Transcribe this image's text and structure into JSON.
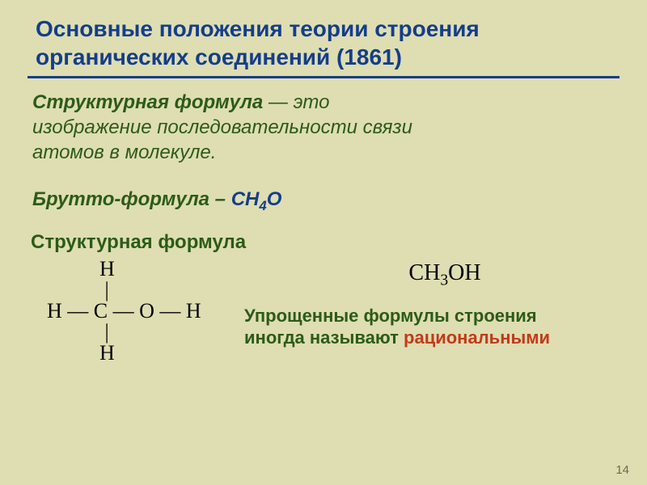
{
  "colors": {
    "background": "#dedeb2",
    "title": "#153d8a",
    "underline": "#153d8a",
    "body": "#2d5a18",
    "formula": "#153d8a",
    "structure": "#000000",
    "rational_formula": "#000000",
    "caption_main": "#2d5a18",
    "caption_em": "#c23a1a",
    "pagenum": "#6b6b55"
  },
  "fonts": {
    "title_size": 28,
    "body_size": 24,
    "brutto_size": 24,
    "struct_label_size": 24,
    "rational_size": 28,
    "caption_size": 22
  },
  "title": {
    "line1": "Основные положения теории строения",
    "line2": "органических соединений (1861)"
  },
  "definition": {
    "term": "Структурная формула",
    "dash": " — это",
    "line2": "изображение последовательности связи",
    "line3": "атомов в молекуле."
  },
  "brutto": {
    "label": "Брутто-формула – ",
    "formula_pre": "CH",
    "formula_sub": "4",
    "formula_post": "O"
  },
  "struct_label": "Структурная формула",
  "structure": {
    "r1": "          H",
    "r2": "           |",
    "r3": "H — C — O — H",
    "r4": "           |",
    "r5": "          H"
  },
  "rational": {
    "pre": "CH",
    "sub": "3",
    "post": "OH"
  },
  "caption": {
    "line1": "Упрощенные формулы строения",
    "line2a": "иногда называют ",
    "line2b": "рациональными"
  },
  "page": "14"
}
